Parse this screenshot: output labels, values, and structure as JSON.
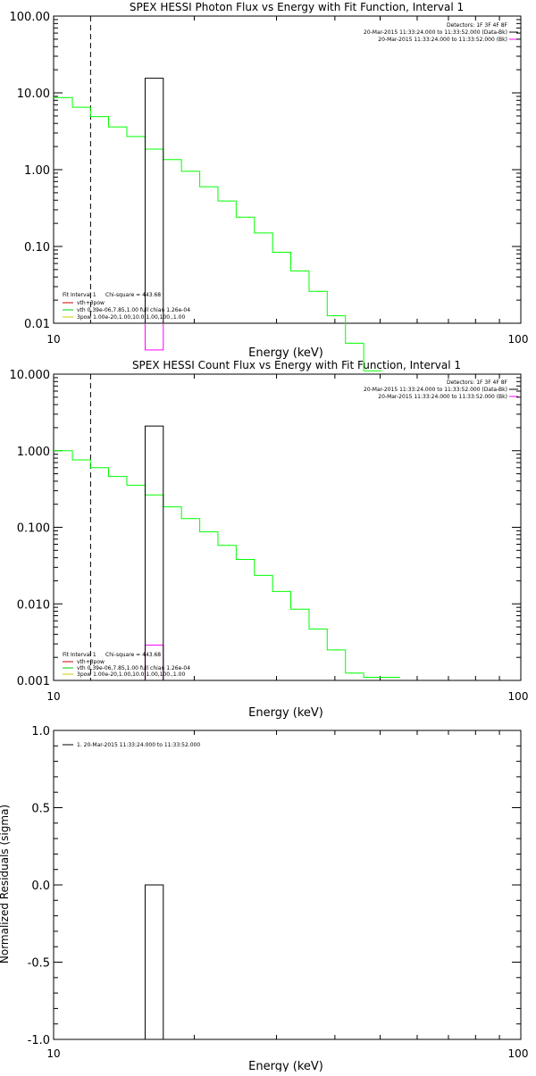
{
  "colors": {
    "background": "#ffffff",
    "axis": "#000000",
    "data": "#000000",
    "model_total": "#00ff00",
    "background_hist": "#ff00ff",
    "legend_vth_thick2": "#cc0000",
    "legend_vth": "#00cc00",
    "legend_3pow": "#cccc00"
  },
  "chart_data": [
    {
      "type": "line",
      "title": "SPEX HESSI Photon Flux vs Energy with Fit Function, Interval 1",
      "xlabel": "Energy (keV)",
      "ylabel": "",
      "xscale": "log",
      "yscale": "log",
      "xlim": [
        10,
        100
      ],
      "ylim": [
        0.01,
        100
      ],
      "xticks": [
        "10",
        "100"
      ],
      "yticks": [
        {
          "value": 100,
          "label": "100.00"
        },
        {
          "value": 10,
          "label": "10.00"
        },
        {
          "value": 1,
          "label": "1.00"
        },
        {
          "value": 0.1,
          "label": "0.10"
        },
        {
          "value": 0.01,
          "label": "0.01"
        }
      ],
      "fit_range_line_x": 12.0,
      "bin_edges": [
        10,
        10.97,
        11.99,
        13.11,
        14.35,
        15.7,
        17.17,
        18.78,
        20.55,
        22.48,
        24.59,
        26.9,
        29.43,
        32.19,
        35.22,
        38.52,
        42.14,
        46.1,
        50.43
      ],
      "model_values": [
        8.7,
        6.5,
        4.9,
        3.6,
        2.7,
        1.85,
        1.35,
        0.95,
        0.6,
        0.39,
        0.24,
        0.15,
        0.084,
        0.048,
        0.026,
        0.0125,
        0.0055,
        0.0024
      ],
      "data_bar": {
        "x_start": 15.7,
        "x_end": 17.17,
        "value": 15.5
      },
      "background_bar": {
        "x_start": 15.7,
        "x_end": 17.17,
        "value": 0.0045
      },
      "info": {
        "detectors": "Detectors: 1F 3F 4F 8F",
        "time1": "20-Mar-2015 11:33:24.000 to 11:33:52.000 (Data-Bk)",
        "time2": "20-Mar-2015 11:33:24.000 to 11:33:52.000 (Bk)"
      },
      "legend": {
        "fit_interval": "Fit Interval 1",
        "chi_square": "Chi-square = 443.68",
        "items": [
          {
            "label": "vth+3pow",
            "color": "#cc0000"
          },
          {
            "label": "vth 0.39e-06,7.85,1.00  full chian 1.26e-04",
            "color": "#00cc00"
          },
          {
            "label": "3pow 1.00e-20,1.00,10.0,1.00,100.,1.00",
            "color": "#cccc00"
          }
        ]
      }
    },
    {
      "type": "line",
      "title": "SPEX HESSI Count Flux vs Energy with Fit Function, Interval 1",
      "xlabel": "Energy (keV)",
      "ylabel": "",
      "xscale": "log",
      "yscale": "log",
      "xlim": [
        10,
        100
      ],
      "ylim": [
        0.001,
        10
      ],
      "xticks": [
        "10",
        "100"
      ],
      "yticks": [
        {
          "value": 10,
          "label": "10.000"
        },
        {
          "value": 1,
          "label": "1.000"
        },
        {
          "value": 0.1,
          "label": "0.100"
        },
        {
          "value": 0.01,
          "label": "0.010"
        },
        {
          "value": 0.001,
          "label": "0.001"
        }
      ],
      "fit_range_line_x": 12.0,
      "bin_edges": [
        10,
        10.97,
        11.99,
        13.11,
        14.35,
        15.7,
        17.17,
        18.78,
        20.55,
        22.48,
        24.59,
        26.9,
        29.43,
        32.19,
        35.22,
        38.52,
        42.14,
        46.1,
        50.43,
        55.17
      ],
      "model_values": [
        1.0,
        0.76,
        0.6,
        0.46,
        0.355,
        0.265,
        0.185,
        0.13,
        0.087,
        0.058,
        0.038,
        0.0235,
        0.0145,
        0.0085,
        0.0047,
        0.0025,
        0.00125,
        0.0011,
        0.0011
      ],
      "data_bar": {
        "x_start": 15.7,
        "x_end": 17.17,
        "value": 2.1
      },
      "background_bar": {
        "x_start": 15.7,
        "x_end": 17.17,
        "value": 0.0029
      },
      "info": {
        "detectors": "Detectors: 1F 3F 4F 8F",
        "time1": "20-Mar-2015 11:33:24.000 to 11:33:52.000 (Data-Bk)",
        "time2": "20-Mar-2015 11:33:24.000 to 11:33:52.000 (Bk)"
      },
      "legend": {
        "fit_interval": "Fit Interval 1",
        "chi_square": "Chi-square = 443.68",
        "items": [
          {
            "label": "vth+3pow",
            "color": "#cc0000"
          },
          {
            "label": "vth 0.39e-06,7.85,1.00  full chian 1.26e-04",
            "color": "#00cc00"
          },
          {
            "label": "3pow 1.00e-20,1.00,10.0,1.00,100.,1.00",
            "color": "#cccc00"
          }
        ]
      }
    },
    {
      "type": "bar",
      "title": "",
      "xlabel": "Energy (keV)",
      "ylabel": "Normalized Residuals (sigma)",
      "xscale": "log",
      "yscale": "linear",
      "xlim": [
        10,
        100
      ],
      "ylim": [
        -1.0,
        1.0
      ],
      "xticks": [
        "10",
        "100"
      ],
      "yticks": [
        {
          "value": 1.0,
          "label": "1.0"
        },
        {
          "value": 0.5,
          "label": "0.5"
        },
        {
          "value": 0.0,
          "label": "0.0"
        },
        {
          "value": -0.5,
          "label": "-0.5"
        },
        {
          "value": -1.0,
          "label": "-1.0"
        }
      ],
      "residual_bar": {
        "x_start": 15.7,
        "x_end": 17.17,
        "value": 0.0
      },
      "legend": {
        "items": [
          {
            "label": "1. 20-Mar-2015 11:33:24.000 to 11:33:52.000",
            "color": "#000000"
          }
        ]
      }
    }
  ]
}
